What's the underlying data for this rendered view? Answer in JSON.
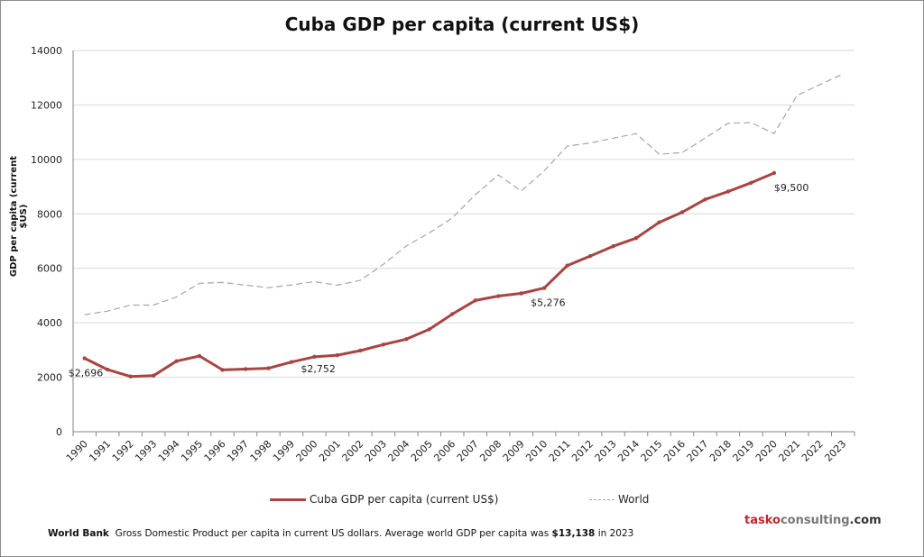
{
  "chart_data": {
    "type": "line",
    "title": "Cuba GDP per capita (current US$)",
    "ylabel": "GDP per capita  (current $US)",
    "xlabel": "",
    "ylim": [
      0,
      14000
    ],
    "yticks": [
      0,
      2000,
      4000,
      6000,
      8000,
      10000,
      12000,
      14000
    ],
    "grid": true,
    "legend": "bottom",
    "categories": [
      "1990",
      "1991",
      "1992",
      "1993",
      "1994",
      "1995",
      "1996",
      "1997",
      "1998",
      "1999",
      "2000",
      "2001",
      "2002",
      "2003",
      "2004",
      "2005",
      "2006",
      "2007",
      "2008",
      "2009",
      "2010",
      "2011",
      "2012",
      "2013",
      "2014",
      "2015",
      "2016",
      "2017",
      "2018",
      "2019",
      "2020",
      "2021",
      "2022",
      "2023"
    ],
    "series": [
      {
        "name": "Cuba GDP per capita (current US$)",
        "color": "#a94442",
        "style": "solid-markers",
        "values": [
          2696,
          2280,
          2030,
          2060,
          2590,
          2780,
          2270,
          2300,
          2330,
          2560,
          2752,
          2810,
          2980,
          3200,
          3400,
          3760,
          4320,
          4820,
          4980,
          5080,
          5276,
          6100,
          6450,
          6810,
          7110,
          7690,
          8060,
          8530,
          8820,
          9140,
          9500,
          null,
          null,
          null
        ]
      },
      {
        "name": "World",
        "color": "#a6a6a6",
        "style": "dashed",
        "values": [
          4300,
          4430,
          4650,
          4650,
          4950,
          5450,
          5480,
          5380,
          5290,
          5390,
          5510,
          5380,
          5560,
          6150,
          6820,
          7300,
          7850,
          8700,
          9430,
          8840,
          9580,
          10490,
          10600,
          10780,
          10950,
          10190,
          10250,
          10780,
          11330,
          11350,
          10950,
          12350,
          12750,
          13138
        ]
      }
    ],
    "annotations": [
      {
        "category": "1990",
        "text": "$2,696"
      },
      {
        "category": "2000",
        "text": "$2,752"
      },
      {
        "category": "2010",
        "text": "$5,276"
      },
      {
        "category": "2020",
        "text": "$9,500"
      }
    ]
  },
  "footer": {
    "source": "World Bank",
    "text": "Gross Domestic Product per capita in current US dollars.  Average world GDP per capita was ",
    "value": "$13,138",
    "suffix": " in 2023"
  },
  "brand": {
    "part1": "tasko",
    "part2": "consulting",
    "part3": ".com",
    "color1": "#c0272d",
    "color2": "#777777",
    "color3": "#333333"
  }
}
